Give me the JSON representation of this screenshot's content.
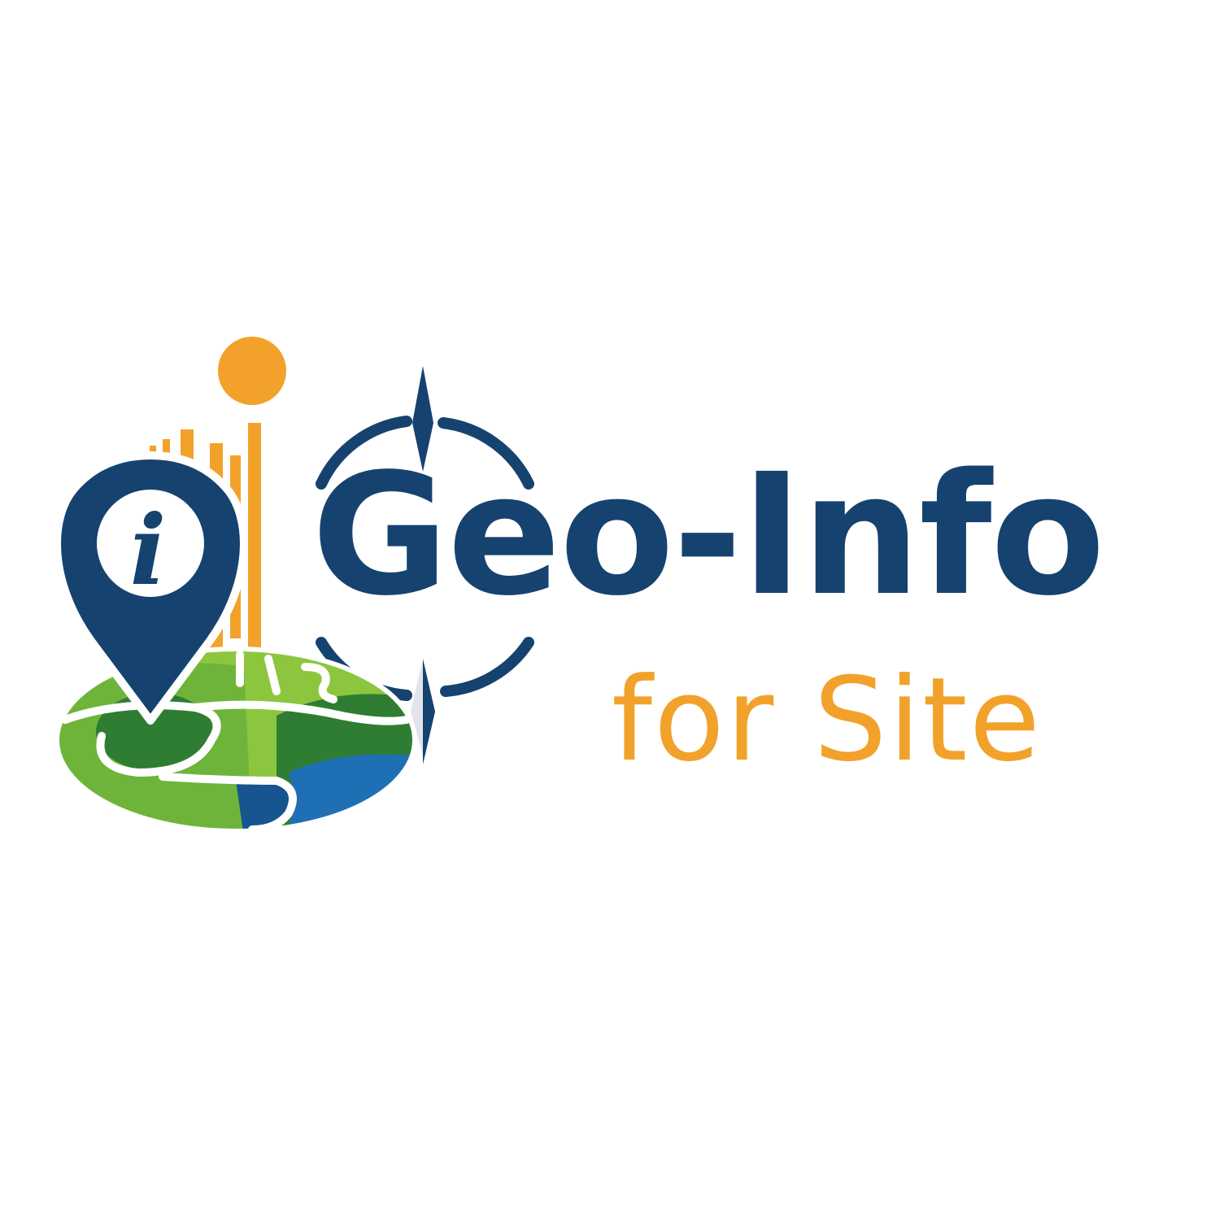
{
  "logo": {
    "primary_text": "Geo-Info",
    "secondary_text": "for Site",
    "pin_glyph": "i",
    "icons": [
      "map-pin-icon",
      "info-icon",
      "sun-icon",
      "compass-icon",
      "landscape-map-icon",
      "bar-chart-icon"
    ],
    "colors": {
      "navy": "#16426f",
      "orange": "#f2a22a",
      "green_light": "#8cc63f",
      "green_dark": "#2f7d32",
      "blue_water": "#1f6fb5",
      "background": "#ffffff"
    }
  }
}
